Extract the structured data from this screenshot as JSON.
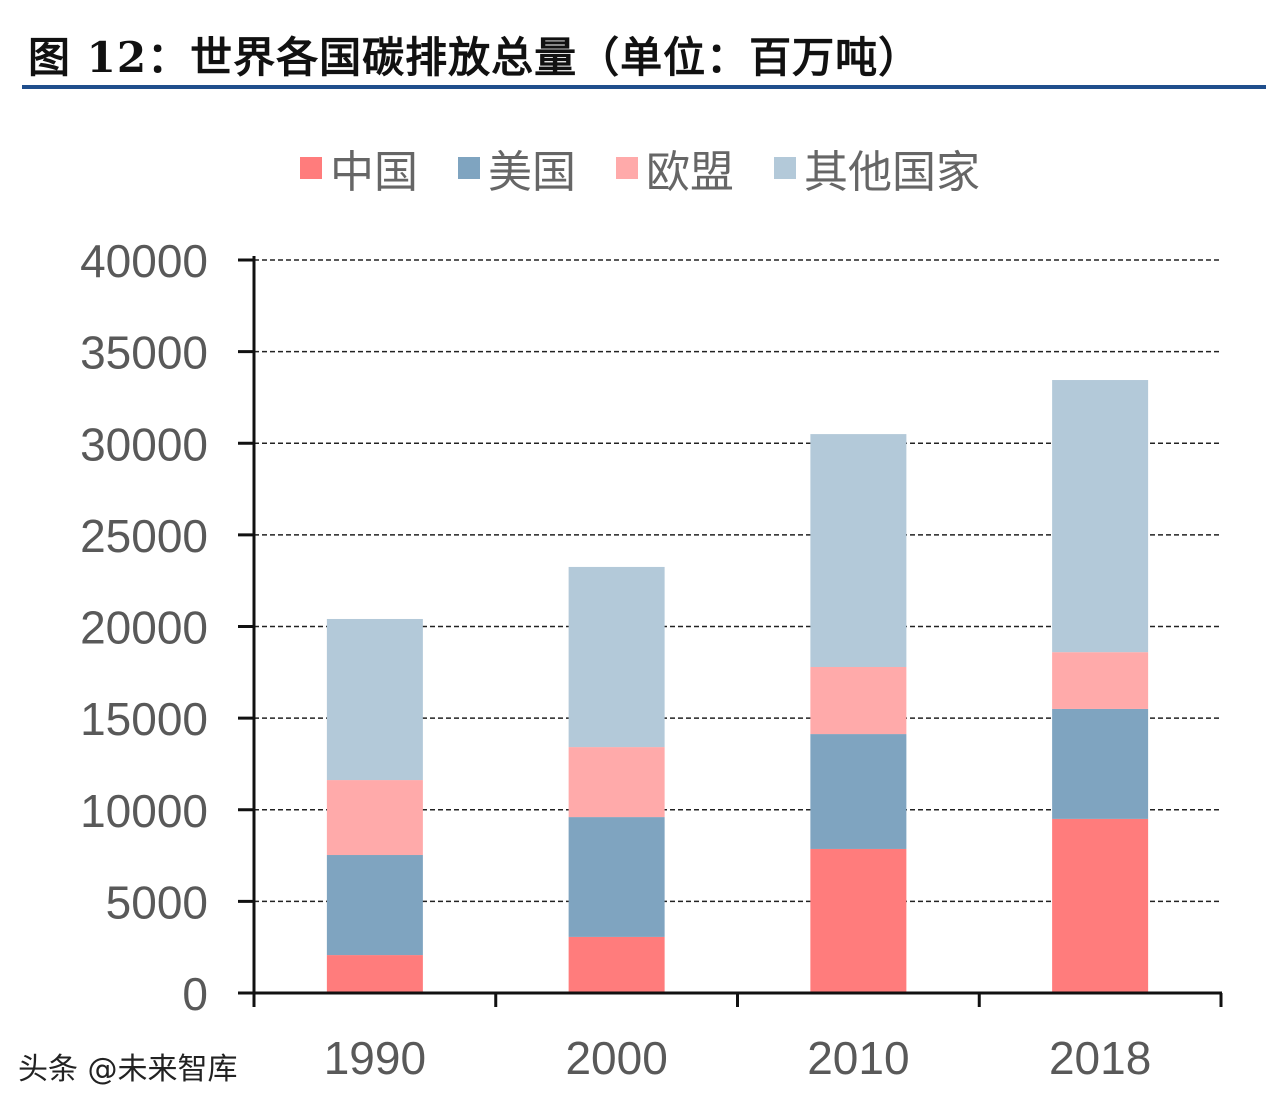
{
  "chart_data": {
    "type": "bar",
    "stacked": true,
    "title": "图 12：世界各国碳排放总量（单位：百万吨）",
    "xlabel": "",
    "ylabel": "",
    "categories": [
      "1990",
      "2000",
      "2010",
      "2018"
    ],
    "series": [
      {
        "name": "中国",
        "color": "#ff7c7c",
        "values": [
          2070,
          3060,
          7860,
          9500
        ]
      },
      {
        "name": "美国",
        "color": "#7fa4c0",
        "values": [
          5460,
          6540,
          6270,
          6000
        ]
      },
      {
        "name": "欧盟",
        "color": "#ffaaaa",
        "values": [
          4090,
          3820,
          3660,
          3100
        ]
      },
      {
        "name": "其他国家",
        "color": "#b3c9d9",
        "values": [
          8790,
          9830,
          12710,
          14850
        ]
      }
    ],
    "ylim": [
      0,
      40000
    ],
    "yticks": [
      "0",
      "5000",
      "10000",
      "15000",
      "20000",
      "25000",
      "30000",
      "35000",
      "40000"
    ],
    "grid": true,
    "legend": "top"
  },
  "watermark": "头条 @未来智库",
  "title_rule_color": "#1f4e8c"
}
